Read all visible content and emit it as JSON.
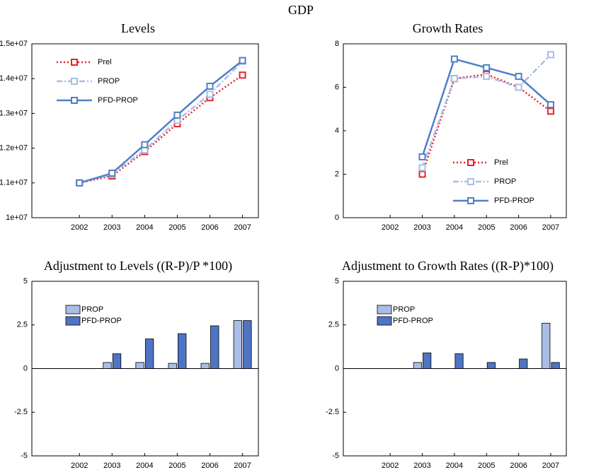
{
  "title": "GDP",
  "chart_data": [
    {
      "type": "line",
      "title": "Levels",
      "categories": [
        "2002",
        "2003",
        "2004",
        "2005",
        "2006",
        "2007"
      ],
      "ylim": [
        10000000,
        15000000
      ],
      "yticks": [
        {
          "value": 10000000,
          "label": "1e+07"
        },
        {
          "value": 11000000,
          "label": "1.1e+07"
        },
        {
          "value": 12000000,
          "label": "1.2e+07"
        },
        {
          "value": 13000000,
          "label": "1.3e+07"
        },
        {
          "value": 14000000,
          "label": "1.4e+07"
        },
        {
          "value": 15000000,
          "label": "1.5e+07"
        }
      ],
      "legend": "top-left",
      "series": [
        {
          "name": "Prel",
          "color": "#e8212b",
          "style": "dotted",
          "values": [
            11000000,
            11200000,
            11900000,
            12700000,
            13450000,
            14100000
          ]
        },
        {
          "name": "PROP",
          "color": "#a9bde6",
          "style": "dashdot",
          "values": [
            11000000,
            11250000,
            11950000,
            12800000,
            13550000,
            14500000
          ]
        },
        {
          "name": "PFD-PROP",
          "color": "#4f7fc7",
          "style": "solid",
          "values": [
            11000000,
            11280000,
            12100000,
            12950000,
            13780000,
            14520000
          ]
        }
      ]
    },
    {
      "type": "line",
      "title": "Growth Rates",
      "categories": [
        "2002",
        "2003",
        "2004",
        "2005",
        "2006",
        "2007"
      ],
      "ylim": [
        0,
        8
      ],
      "yticks": [
        0,
        2,
        4,
        6,
        8
      ],
      "legend": "bottom-right",
      "series": [
        {
          "name": "Prel",
          "color": "#e8212b",
          "style": "dotted",
          "values": [
            null,
            2.0,
            6.4,
            6.6,
            6.0,
            4.9
          ]
        },
        {
          "name": "PROP",
          "color": "#a9bde6",
          "style": "dashdot",
          "values": [
            null,
            2.3,
            6.4,
            6.5,
            6.0,
            7.5
          ]
        },
        {
          "name": "PFD-PROP",
          "color": "#4f7fc7",
          "style": "solid",
          "values": [
            null,
            2.8,
            7.3,
            6.9,
            6.5,
            5.2
          ]
        }
      ]
    },
    {
      "type": "bar",
      "title": "Adjustment to Levels ((R-P)/P *100)",
      "categories": [
        "2002",
        "2003",
        "2004",
        "2005",
        "2006",
        "2007"
      ],
      "ylim": [
        -5,
        5
      ],
      "yticks": [
        -5,
        -2.5,
        0,
        2.5,
        5
      ],
      "legend": "top-left",
      "series": [
        {
          "name": "PROP",
          "color": "#a9bde6",
          "values": [
            null,
            0.35,
            0.35,
            0.3,
            0.3,
            2.75
          ]
        },
        {
          "name": "PFD-PROP",
          "color": "#4f74c4",
          "values": [
            null,
            0.85,
            1.7,
            2.0,
            2.45,
            2.75
          ]
        }
      ]
    },
    {
      "type": "bar",
      "title": "Adjustment to Growth Rates ((R-P)*100)",
      "categories": [
        "2002",
        "2003",
        "2004",
        "2005",
        "2006",
        "2007"
      ],
      "ylim": [
        -5,
        5
      ],
      "yticks": [
        -5,
        -2.5,
        0,
        2.5,
        5
      ],
      "legend": "top-left",
      "series": [
        {
          "name": "PROP",
          "color": "#a9bde6",
          "values": [
            null,
            0.35,
            null,
            null,
            null,
            2.6
          ]
        },
        {
          "name": "PFD-PROP",
          "color": "#4f74c4",
          "values": [
            null,
            0.9,
            0.85,
            0.35,
            0.55,
            0.35
          ]
        }
      ]
    }
  ]
}
